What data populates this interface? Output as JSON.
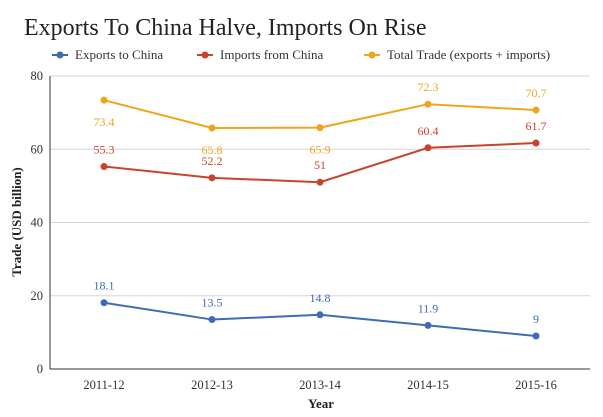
{
  "chart_data": {
    "type": "line",
    "title": "Exports To China Halve, Imports On Rise",
    "xlabel": "Year",
    "ylabel": "Trade (USD billion)",
    "categories": [
      "2011-12",
      "2012-13",
      "2013-14",
      "2014-15",
      "2015-16"
    ],
    "ylim": [
      0,
      80
    ],
    "yticks": [
      0,
      20,
      40,
      60,
      80
    ],
    "grid": true,
    "legend_position": "top",
    "series": [
      {
        "name": "Exports to China",
        "color": "#3d6cb4",
        "values": [
          18.1,
          13.5,
          14.8,
          11.9,
          9
        ],
        "labels": [
          "18.1",
          "13.5",
          "14.8",
          "11.9",
          "9"
        ]
      },
      {
        "name": "Imports from China",
        "color": "#c9432b",
        "values": [
          55.3,
          52.2,
          51,
          60.4,
          61.7
        ],
        "labels": [
          "55.3",
          "52.2",
          "51",
          "60.4",
          "61.7"
        ]
      },
      {
        "name": "Total Trade (exports + imports)",
        "color": "#f0a41c",
        "values": [
          73.4,
          65.8,
          65.9,
          72.3,
          70.7
        ],
        "labels": [
          "73.4",
          "65.8",
          "65.9",
          "72.3",
          "70.7"
        ]
      }
    ]
  }
}
